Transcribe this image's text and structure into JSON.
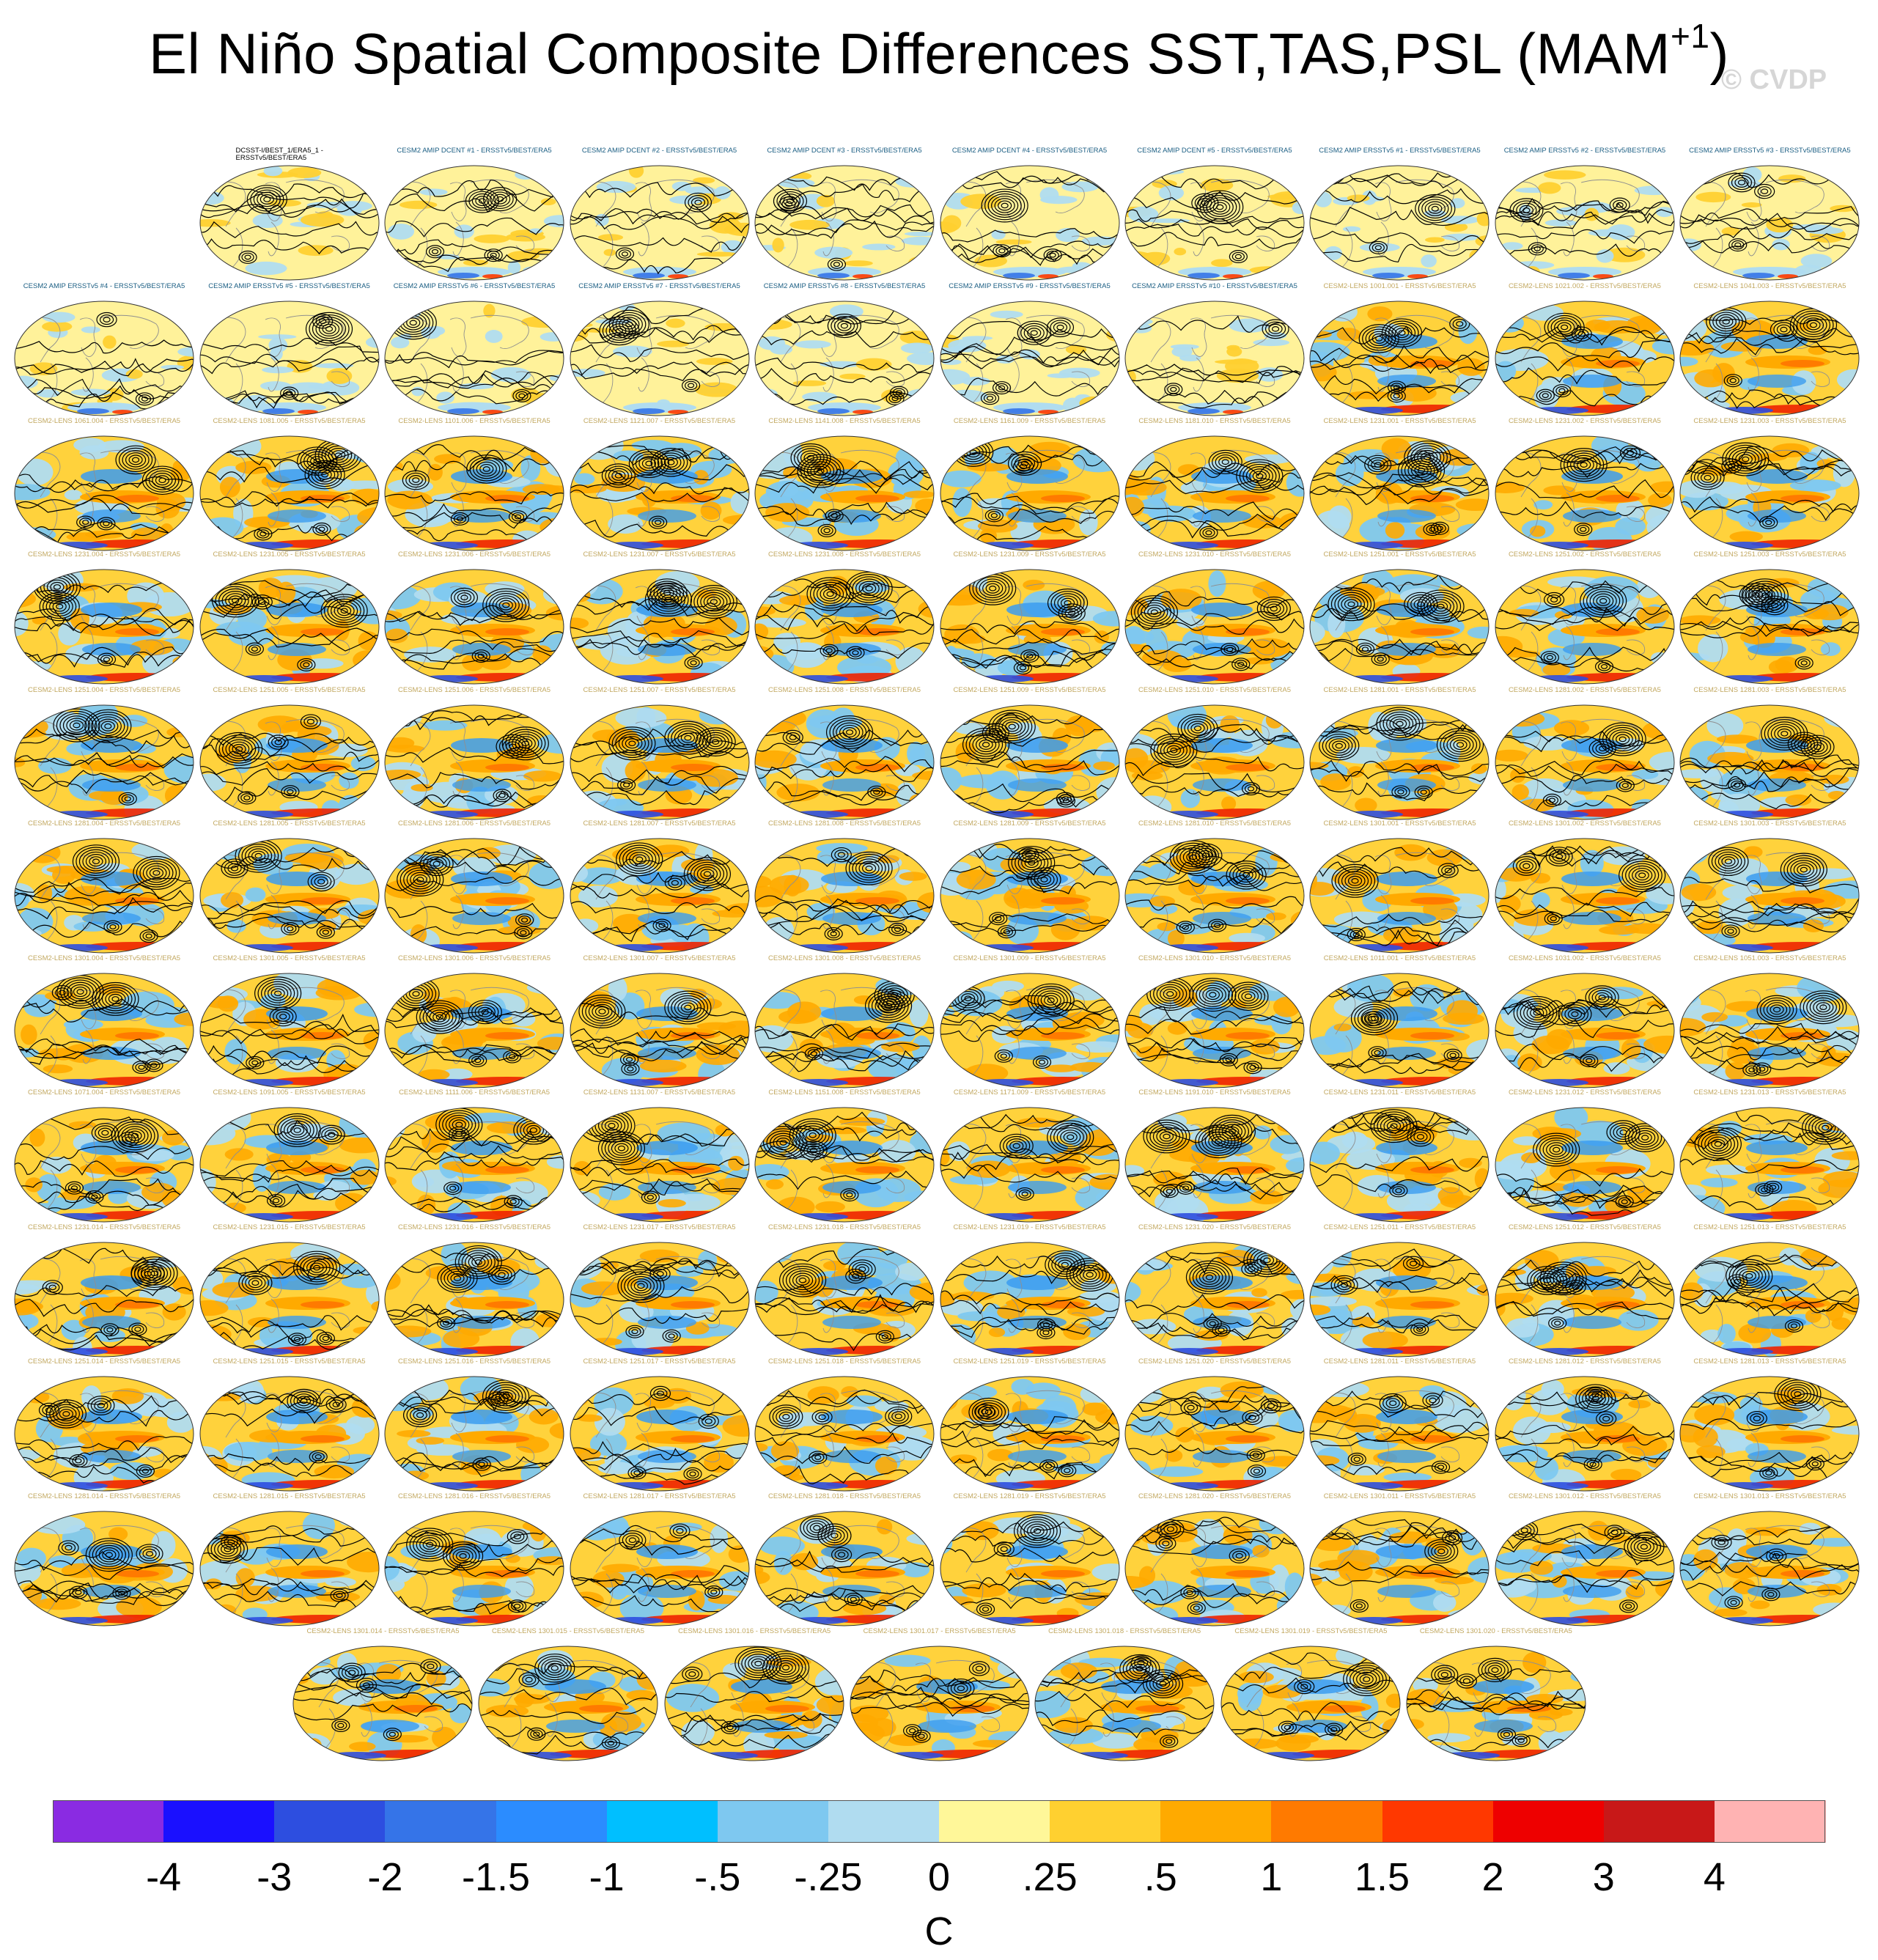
{
  "title": {
    "main": "El Niño Spatial Composite Differences SST,TAS,PSL (MAM",
    "superscript": "+1",
    "close": ")"
  },
  "watermark": "© CVDP",
  "colorbar": {
    "units": "C",
    "colors": [
      "#8a2be2",
      "#1a10ff",
      "#2d4ee0",
      "#3574e8",
      "#2b8cff",
      "#00bfff",
      "#7ec8f0",
      "#b0dcf0",
      "#fff799",
      "#ffd030",
      "#ffaa00",
      "#ff7a00",
      "#ff3800",
      "#ee0000",
      "#c81818",
      "#ffb3b3"
    ],
    "labels": [
      "-4",
      "-3",
      "-2",
      "-1.5",
      "-1",
      "-.5",
      "-.25",
      "0",
      ".25",
      ".5",
      "1",
      "1.5",
      "2",
      "3",
      "4"
    ]
  },
  "panels": {
    "reference": {
      "label_line1": "DCSST-I/BEST_1/ERA5_1 -",
      "label_line2": "ERSSTv5/BEST/ERA5",
      "label_color": "#000000"
    },
    "amip": {
      "label_color": "#1b5e83",
      "labels": [
        "CESM2 AMIP DCENT #1 - ERSSTv5/BEST/ERA5",
        "CESM2 AMIP DCENT #2 - ERSSTv5/BEST/ERA5",
        "CESM2 AMIP DCENT #3 - ERSSTv5/BEST/ERA5",
        "CESM2 AMIP DCENT #4 - ERSSTv5/BEST/ERA5",
        "CESM2 AMIP DCENT #5 - ERSSTv5/BEST/ERA5",
        "CESM2 AMIP ERSSTv5 #1 - ERSSTv5/BEST/ERA5",
        "CESM2 AMIP ERSSTv5 #2 - ERSSTv5/BEST/ERA5",
        "CESM2 AMIP ERSSTv5 #3 - ERSSTv5/BEST/ERA5",
        "CESM2 AMIP ERSSTv5 #4 - ERSSTv5/BEST/ERA5",
        "CESM2 AMIP ERSSTv5 #5 - ERSSTv5/BEST/ERA5",
        "CESM2 AMIP ERSSTv5 #6 - ERSSTv5/BEST/ERA5",
        "CESM2 AMIP ERSSTv5 #7 - ERSSTv5/BEST/ERA5",
        "CESM2 AMIP ERSSTv5 #8 - ERSSTv5/BEST/ERA5",
        "CESM2 AMIP ERSSTv5 #9 - ERSSTv5/BEST/ERA5",
        "CESM2 AMIP ERSSTv5 #10 - ERSSTv5/BEST/ERA5"
      ]
    },
    "lens": {
      "label_color": "#c2a860",
      "labels": [
        "CESM2-LENS 1001.001 - ERSSTv5/BEST/ERA5",
        "CESM2-LENS 1021.002 - ERSSTv5/BEST/ERA5",
        "CESM2-LENS 1041.003 - ERSSTv5/BEST/ERA5",
        "CESM2-LENS 1061.004 - ERSSTv5/BEST/ERA5",
        "CESM2-LENS 1081.005 - ERSSTv5/BEST/ERA5",
        "CESM2-LENS 1101.006 - ERSSTv5/BEST/ERA5",
        "CESM2-LENS 1121.007 - ERSSTv5/BEST/ERA5",
        "CESM2-LENS 1141.008 - ERSSTv5/BEST/ERA5",
        "CESM2-LENS 1161.009 - ERSSTv5/BEST/ERA5",
        "CESM2-LENS 1181.010 - ERSSTv5/BEST/ERA5",
        "CESM2-LENS 1231.001 - ERSSTv5/BEST/ERA5",
        "CESM2-LENS 1231.002 - ERSSTv5/BEST/ERA5",
        "CESM2-LENS 1231.003 - ERSSTv5/BEST/ERA5",
        "CESM2-LENS 1231.004 - ERSSTv5/BEST/ERA5",
        "CESM2-LENS 1231.005 - ERSSTv5/BEST/ERA5",
        "CESM2-LENS 1231.006 - ERSSTv5/BEST/ERA5",
        "CESM2-LENS 1231.007 - ERSSTv5/BEST/ERA5",
        "CESM2-LENS 1231.008 - ERSSTv5/BEST/ERA5",
        "CESM2-LENS 1231.009 - ERSSTv5/BEST/ERA5",
        "CESM2-LENS 1231.010 - ERSSTv5/BEST/ERA5",
        "CESM2-LENS 1251.001 - ERSSTv5/BEST/ERA5",
        "CESM2-LENS 1251.002 - ERSSTv5/BEST/ERA5",
        "CESM2-LENS 1251.003 - ERSSTv5/BEST/ERA5",
        "CESM2-LENS 1251.004 - ERSSTv5/BEST/ERA5",
        "CESM2-LENS 1251.005 - ERSSTv5/BEST/ERA5",
        "CESM2-LENS 1251.006 - ERSSTv5/BEST/ERA5",
        "CESM2-LENS 1251.007 - ERSSTv5/BEST/ERA5",
        "CESM2-LENS 1251.008 - ERSSTv5/BEST/ERA5",
        "CESM2-LENS 1251.009 - ERSSTv5/BEST/ERA5",
        "CESM2-LENS 1251.010 - ERSSTv5/BEST/ERA5",
        "CESM2-LENS 1281.001 - ERSSTv5/BEST/ERA5",
        "CESM2-LENS 1281.002 - ERSSTv5/BEST/ERA5",
        "CESM2-LENS 1281.003 - ERSSTv5/BEST/ERA5",
        "CESM2-LENS 1281.004 - ERSSTv5/BEST/ERA5",
        "CESM2-LENS 1281.005 - ERSSTv5/BEST/ERA5",
        "CESM2-LENS 1281.006 - ERSSTv5/BEST/ERA5",
        "CESM2-LENS 1281.007 - ERSSTv5/BEST/ERA5",
        "CESM2-LENS 1281.008 - ERSSTv5/BEST/ERA5",
        "CESM2-LENS 1281.009 - ERSSTv5/BEST/ERA5",
        "CESM2-LENS 1281.010 - ERSSTv5/BEST/ERA5",
        "CESM2-LENS 1301.001 - ERSSTv5/BEST/ERA5",
        "CESM2-LENS 1301.002 - ERSSTv5/BEST/ERA5",
        "CESM2-LENS 1301.003 - ERSSTv5/BEST/ERA5",
        "CESM2-LENS 1301.004 - ERSSTv5/BEST/ERA5",
        "CESM2-LENS 1301.005 - ERSSTv5/BEST/ERA5",
        "CESM2-LENS 1301.006 - ERSSTv5/BEST/ERA5",
        "CESM2-LENS 1301.007 - ERSSTv5/BEST/ERA5",
        "CESM2-LENS 1301.008 - ERSSTv5/BEST/ERA5",
        "CESM2-LENS 1301.009 - ERSSTv5/BEST/ERA5",
        "CESM2-LENS 1301.010 - ERSSTv5/BEST/ERA5",
        "CESM2-LENS 1011.001 - ERSSTv5/BEST/ERA5",
        "CESM2-LENS 1031.002 - ERSSTv5/BEST/ERA5",
        "CESM2-LENS 1051.003 - ERSSTv5/BEST/ERA5",
        "CESM2-LENS 1071.004 - ERSSTv5/BEST/ERA5",
        "CESM2-LENS 1091.005 - ERSSTv5/BEST/ERA5",
        "CESM2-LENS 1111.006 - ERSSTv5/BEST/ERA5",
        "CESM2-LENS 1131.007 - ERSSTv5/BEST/ERA5",
        "CESM2-LENS 1151.008 - ERSSTv5/BEST/ERA5",
        "CESM2-LENS 1171.009 - ERSSTv5/BEST/ERA5",
        "CESM2-LENS 1191.010 - ERSSTv5/BEST/ERA5",
        "CESM2-LENS 1231.011 - ERSSTv5/BEST/ERA5",
        "CESM2-LENS 1231.012 - ERSSTv5/BEST/ERA5",
        "CESM2-LENS 1231.013 - ERSSTv5/BEST/ERA5",
        "CESM2-LENS 1231.014 - ERSSTv5/BEST/ERA5",
        "CESM2-LENS 1231.015 - ERSSTv5/BEST/ERA5",
        "CESM2-LENS 1231.016 - ERSSTv5/BEST/ERA5",
        "CESM2-LENS 1231.017 - ERSSTv5/BEST/ERA5",
        "CESM2-LENS 1231.018 - ERSSTv5/BEST/ERA5",
        "CESM2-LENS 1231.019 - ERSSTv5/BEST/ERA5",
        "CESM2-LENS 1231.020 - ERSSTv5/BEST/ERA5",
        "CESM2-LENS 1251.011 - ERSSTv5/BEST/ERA5",
        "CESM2-LENS 1251.012 - ERSSTv5/BEST/ERA5",
        "CESM2-LENS 1251.013 - ERSSTv5/BEST/ERA5",
        "CESM2-LENS 1251.014 - ERSSTv5/BEST/ERA5",
        "CESM2-LENS 1251.015 - ERSSTv5/BEST/ERA5",
        "CESM2-LENS 1251.016 - ERSSTv5/BEST/ERA5",
        "CESM2-LENS 1251.017 - ERSSTv5/BEST/ERA5",
        "CESM2-LENS 1251.018 - ERSSTv5/BEST/ERA5",
        "CESM2-LENS 1251.019 - ERSSTv5/BEST/ERA5",
        "CESM2-LENS 1251.020 - ERSSTv5/BEST/ERA5",
        "CESM2-LENS 1281.011 - ERSSTv5/BEST/ERA5",
        "CESM2-LENS 1281.012 - ERSSTv5/BEST/ERA5",
        "CESM2-LENS 1281.013 - ERSSTv5/BEST/ERA5",
        "CESM2-LENS 1281.014 - ERSSTv5/BEST/ERA5",
        "CESM2-LENS 1281.015 - ERSSTv5/BEST/ERA5",
        "CESM2-LENS 1281.016 - ERSSTv5/BEST/ERA5",
        "CESM2-LENS 1281.017 - ERSSTv5/BEST/ERA5",
        "CESM2-LENS 1281.018 - ERSSTv5/BEST/ERA5",
        "CESM2-LENS 1281.019 - ERSSTv5/BEST/ERA5",
        "CESM2-LENS 1281.020 - ERSSTv5/BEST/ERA5",
        "CESM2-LENS 1301.011 - ERSSTv5/BEST/ERA5",
        "CESM2-LENS 1301.012 - ERSSTv5/BEST/ERA5",
        "CESM2-LENS 1301.013 - ERSSTv5/BEST/ERA5",
        "CESM2-LENS 1301.014 - ERSSTv5/BEST/ERA5",
        "CESM2-LENS 1301.015 - ERSSTv5/BEST/ERA5",
        "CESM2-LENS 1301.016 - ERSSTv5/BEST/ERA5",
        "CESM2-LENS 1301.017 - ERSSTv5/BEST/ERA5",
        "CESM2-LENS 1301.018 - ERSSTv5/BEST/ERA5",
        "CESM2-LENS 1301.019 - ERSSTv5/BEST/ERA5",
        "CESM2-LENS 1301.020 - ERSSTv5/BEST/ERA5"
      ]
    }
  }
}
